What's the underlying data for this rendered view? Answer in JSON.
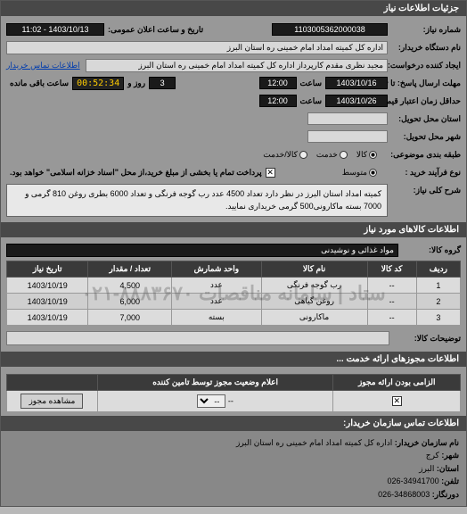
{
  "header": {
    "title": "جزئیات اطلاعات نیاز"
  },
  "need": {
    "number_label": "شماره نیاز:",
    "number": "1103005362000038",
    "announce_label": "تاریخ و ساعت اعلان عمومی:",
    "announce_date": "1403/10/13 - 11:02",
    "buyer_label": "نام دستگاه خریدار:",
    "buyer": "اداره کل کمیته امداد امام خمینی  ره  استان البرز",
    "creator_label": "ایجاد کننده درخواست:",
    "creator": "مجید نظری مقدم کارپرداز اداره کل کمیته امداد امام خمینی  ره  استان البرز",
    "buyer_contact_link": "اطلاعات تماس خریدار",
    "send_deadline_label": "مهلت ارسال پاسخ: تا تاریخ:",
    "send_deadline_date": "1403/10/16",
    "hour_label": "ساعت",
    "send_deadline_time": "12:00",
    "remaining_days_val": "3",
    "remaining_label_1": "روز و",
    "remaining_time": "00:52:34",
    "remaining_label_2": "ساعت باقی مانده",
    "price_deadline_label": "حداقل زمان اعتبار قیمت: تا تاریخ:",
    "price_deadline_date": "1403/10/26",
    "price_deadline_time": "12:00",
    "deliver_province_label": "استان محل تحویل:",
    "deliver_city_label": "شهر محل تحویل:",
    "commodity_type_label": "طبقه بندی موضوعی:",
    "commodity_types": [
      "کالا",
      "خدمت",
      "کالا/خدمت"
    ],
    "commodity_selected": 0,
    "process_type_label": "نوع فرآیند خرید :",
    "process_types": [
      "متوسط"
    ],
    "process_selected": 0,
    "payment_note": "پرداخت تمام یا بخشی از مبلغ خرید،از محل \"اسناد خزانه اسلامی\" خواهد بود.",
    "desc_label": "شرح کلی نیاز:",
    "desc": "کمیته امداد استان البرز در نظر دارد تعداد 4500 عدد رب گوجه فرنگی و تعداد 6000 بطری روغن 810 گرمی و 7000 بسته ماکارونی500 گرمی خریداری نمایید."
  },
  "goods": {
    "section_title": "اطلاعات کالاهای مورد نیاز",
    "group_label": "گروه کالا:",
    "group_value": "مواد غذائی و نوشیدنی",
    "columns": [
      "ردیف",
      "کد کالا",
      "نام کالا",
      "واحد شمارش",
      "تعداد / مقدار",
      "تاریخ نیاز"
    ],
    "rows": [
      [
        "1",
        "--",
        "رب گوجه فرنگی",
        "عدد",
        "4,500",
        "1403/10/19"
      ],
      [
        "2",
        "--",
        "روغن گیاهی",
        "عدد",
        "6,000",
        "1403/10/19"
      ],
      [
        "3",
        "--",
        "ماکارونی",
        "بسته",
        "7,000",
        "1403/10/19"
      ]
    ],
    "watermark": "ستاد | سامانه مناقصات ۸۸۸۳۶۷۰-۰۲۱",
    "notes_label": "توضیحات کالا:"
  },
  "permits": {
    "section_title": "اطلاعات مجوزهای ارائه خدمت ...",
    "columns": [
      "الزامی بودن ارائه مجوز",
      "اعلام وضعیت مجوز توسط تامین کننده",
      ""
    ],
    "view_btn": "مشاهده مجوز",
    "select_placeholder": "--",
    "checked": true
  },
  "contact": {
    "section_title": "اطلاعات تماس سازمان خریدار:",
    "org_label": "نام سازمان خریدار:",
    "org": "اداره کل کمیته امداد امام خمینی ره استان البرز",
    "city_label": "شهر:",
    "city": "کرج",
    "province_label": "استان:",
    "province": "البرز",
    "phone_label": "تلفن:",
    "phone": "34941700-026",
    "fax_label": "دورنگار:",
    "fax": "34868003-026"
  }
}
